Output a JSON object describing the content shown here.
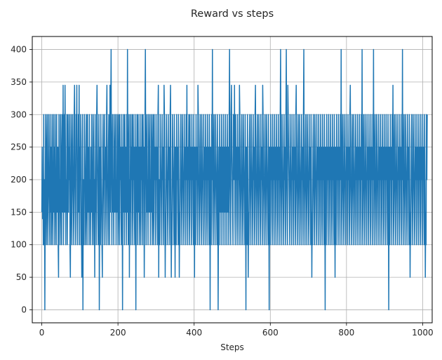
{
  "chart_data": {
    "type": "line",
    "title": "Reward vs steps",
    "xlabel": "Steps",
    "ylabel": "",
    "xlim": [
      -25,
      1025
    ],
    "ylim": [
      -20,
      420
    ],
    "xticks": [
      0,
      200,
      400,
      600,
      800,
      1000
    ],
    "yticks": [
      0,
      50,
      100,
      150,
      200,
      250,
      300,
      350,
      400
    ],
    "grid": true,
    "legend": "none",
    "series": [
      {
        "color": "#1f77b4",
        "x_start": 0,
        "x_step": 1,
        "values": [
          150,
          250,
          140,
          200,
          100,
          300,
          100,
          200,
          0,
          150,
          300,
          200,
          100,
          250,
          300,
          150,
          100,
          200,
          300,
          200,
          150,
          100,
          300,
          150,
          250,
          100,
          200,
          300,
          150,
          100,
          200,
          300,
          150,
          250,
          100,
          300,
          200,
          150,
          100,
          300,
          150,
          200,
          250,
          100,
          50,
          300,
          150,
          200,
          100,
          300,
          250,
          150,
          100,
          300,
          200,
          150,
          345,
          100,
          200,
          300,
          150,
          345,
          250,
          100,
          200,
          150,
          300,
          100,
          200,
          300,
          150,
          250,
          200,
          300,
          100,
          50,
          200,
          300,
          150,
          100,
          250,
          300,
          200,
          150,
          100,
          300,
          345,
          200,
          150,
          100,
          300,
          250,
          345,
          150,
          100,
          200,
          300,
          150,
          345,
          100,
          250,
          200,
          300,
          100,
          150,
          50,
          250,
          300,
          0,
          200,
          150,
          100,
          300,
          250,
          200,
          100,
          150,
          300,
          200,
          100,
          300,
          150,
          250,
          200,
          100,
          300,
          150,
          200,
          100,
          250,
          150,
          300,
          200,
          100,
          150,
          300,
          250,
          100,
          200,
          50,
          300,
          150,
          200,
          100,
          300,
          345,
          250,
          150,
          100,
          200,
          300,
          0,
          150,
          250,
          100,
          300,
          200,
          150,
          100,
          50,
          250,
          300,
          200,
          150,
          100,
          300,
          200,
          250,
          150,
          100,
          300,
          345,
          200,
          150,
          100,
          250,
          300,
          200,
          100,
          345,
          150,
          300,
          400,
          200,
          100,
          250,
          300,
          150,
          200,
          100,
          300,
          250,
          150,
          200,
          300,
          100,
          200,
          150,
          300,
          250,
          100,
          200,
          300,
          150,
          100,
          300,
          200,
          250,
          150,
          100,
          300,
          200,
          0,
          250,
          150,
          300,
          200,
          100,
          300,
          150,
          250,
          200,
          100,
          300,
          150,
          400,
          200,
          100,
          250,
          300,
          50,
          200,
          150,
          300,
          100,
          250,
          200,
          300,
          150,
          100,
          300,
          200,
          250,
          150,
          100,
          300,
          200,
          0,
          250,
          150,
          300,
          100,
          200,
          300,
          150,
          250,
          100,
          200,
          300,
          150,
          100,
          250,
          200,
          300,
          150,
          100,
          300,
          200,
          250,
          50,
          150,
          300,
          400,
          200,
          100,
          250,
          300,
          150,
          200,
          100,
          300,
          250,
          150,
          200,
          300,
          100,
          200,
          150,
          300,
          250,
          100,
          200,
          300,
          150,
          100,
          300,
          200,
          250,
          150,
          100,
          300,
          200,
          250,
          150,
          100,
          300,
          345,
          50,
          200,
          150,
          100,
          300,
          250,
          200,
          150,
          100,
          300,
          200,
          250,
          150,
          100,
          345,
          300,
          200,
          50,
          150,
          100,
          300,
          250,
          200,
          150,
          100,
          300,
          200,
          250,
          150,
          100,
          300,
          345,
          200,
          50,
          150,
          100,
          300,
          250,
          200,
          150,
          100,
          300,
          200,
          50,
          250,
          150,
          100,
          300,
          200,
          250,
          150,
          100,
          300,
          200,
          50,
          150,
          100,
          250,
          300,
          200,
          150,
          100,
          300,
          250,
          200,
          150,
          100,
          300,
          200,
          250,
          150,
          100,
          300,
          200,
          345,
          150,
          100,
          250,
          200,
          300,
          150,
          100,
          300,
          200,
          250,
          150,
          100,
          300,
          200,
          250,
          150,
          100,
          300,
          200,
          50,
          250,
          150,
          100,
          300,
          200,
          250,
          150,
          100,
          345,
          300,
          200,
          150,
          100,
          250,
          300,
          200,
          150,
          100,
          300,
          250,
          200,
          150,
          100,
          300,
          200,
          250,
          150,
          100,
          300,
          200,
          250,
          150,
          100,
          300,
          200,
          250,
          150,
          100,
          300,
          200,
          0,
          250,
          150,
          100,
          300,
          200,
          400,
          150,
          100,
          250,
          300,
          200,
          150,
          100,
          300,
          250,
          200,
          150,
          100,
          300,
          200,
          0,
          150,
          250,
          100,
          300,
          200,
          150,
          250,
          100,
          300,
          200,
          150,
          250,
          100,
          300,
          200,
          150,
          250,
          100,
          300,
          200,
          150,
          250,
          100,
          300,
          200,
          150,
          250,
          100,
          300,
          400,
          200,
          150,
          100,
          300,
          345,
          250,
          200,
          150,
          100,
          300,
          250,
          200,
          345,
          150,
          100,
          300,
          200,
          250,
          150,
          100,
          300,
          200,
          250,
          150,
          100,
          345,
          300,
          200,
          150,
          100,
          250,
          300,
          200,
          150,
          100,
          300,
          250,
          200,
          150,
          100,
          300,
          200,
          0,
          250,
          150,
          100,
          300,
          200,
          50,
          150,
          100,
          250,
          300,
          200,
          150,
          100,
          300,
          250,
          200,
          150,
          100,
          300,
          200,
          250,
          150,
          100,
          300,
          345,
          200,
          150,
          100,
          250,
          300,
          200,
          150,
          100,
          300,
          250,
          200,
          150,
          100,
          300,
          200,
          250,
          150,
          100,
          345,
          300,
          200,
          150,
          100,
          250,
          300,
          200,
          150,
          100,
          300,
          250,
          200,
          150,
          100,
          300,
          200,
          0,
          250,
          150,
          100,
          300,
          200,
          250,
          150,
          100,
          300,
          200,
          250,
          150,
          100,
          300,
          200,
          250,
          150,
          100,
          300,
          200,
          250,
          150,
          100,
          300,
          200,
          250,
          150,
          100,
          300,
          400,
          200,
          150,
          100,
          300,
          250,
          200,
          150,
          100,
          300,
          200,
          250,
          150,
          100,
          300,
          400,
          200,
          150,
          100,
          345,
          300,
          250,
          200,
          150,
          100,
          300,
          250,
          200,
          150,
          100,
          300,
          200,
          250,
          150,
          100,
          300,
          200,
          250,
          150,
          100,
          300,
          345,
          200,
          150,
          100,
          250,
          300,
          200,
          150,
          100,
          300,
          250,
          200,
          150,
          100,
          300,
          200,
          250,
          150,
          100,
          300,
          400,
          200,
          150,
          100,
          250,
          300,
          200,
          150,
          100,
          300,
          250,
          200,
          150,
          100,
          300,
          200,
          250,
          150,
          100,
          300,
          200,
          50,
          150,
          100,
          250,
          300,
          200,
          150,
          100,
          300,
          250,
          200,
          150,
          100,
          300,
          200,
          250,
          150,
          100,
          300,
          200,
          250,
          150,
          100,
          300,
          200,
          250,
          150,
          100,
          300,
          200,
          250,
          150,
          100,
          300,
          200,
          0,
          250,
          150,
          100,
          300,
          200,
          250,
          150,
          100,
          300,
          200,
          250,
          150,
          100,
          300,
          200,
          250,
          150,
          100,
          300,
          200,
          250,
          150,
          100,
          300,
          200,
          50,
          250,
          150,
          100,
          300,
          200,
          250,
          150,
          100,
          300,
          200,
          250,
          150,
          100,
          300,
          200,
          400,
          150,
          100,
          250,
          300,
          200,
          150,
          100,
          300,
          250,
          200,
          150,
          100,
          300,
          200,
          250,
          150,
          100,
          300,
          200,
          250,
          150,
          100,
          300,
          345,
          200,
          150,
          100,
          250,
          300,
          200,
          150,
          100,
          300,
          250,
          200,
          150,
          100,
          300,
          200,
          250,
          150,
          100,
          300,
          200,
          250,
          150,
          100,
          300,
          200,
          250,
          150,
          100,
          300,
          200,
          400,
          150,
          100,
          250,
          300,
          200,
          150,
          100,
          300,
          250,
          200,
          150,
          100,
          300,
          200,
          250,
          150,
          100,
          300,
          200,
          250,
          150,
          100,
          300,
          200,
          250,
          150,
          100,
          300,
          200,
          400,
          150,
          100,
          250,
          300,
          200,
          150,
          100,
          300,
          250,
          200,
          150,
          100,
          300,
          200,
          250,
          150,
          100,
          300,
          200,
          250,
          150,
          100,
          300,
          200,
          250,
          150,
          100,
          300,
          200,
          250,
          150,
          100,
          300,
          200,
          250,
          150,
          100,
          300,
          200,
          0,
          250,
          150,
          100,
          300,
          200,
          250,
          150,
          100,
          300,
          200,
          345,
          150,
          100,
          250,
          300,
          200,
          150,
          100,
          300,
          250,
          200,
          150,
          100,
          300,
          200,
          250,
          150,
          100,
          300,
          200,
          250,
          150,
          100,
          300,
          200,
          400,
          150,
          100,
          250,
          300,
          200,
          150,
          100,
          300,
          250,
          200,
          150,
          100,
          300,
          200,
          250,
          150,
          100,
          300,
          200,
          50,
          150,
          100,
          250,
          300,
          200,
          150,
          100,
          300,
          250,
          200,
          150,
          100,
          300,
          200,
          250,
          150,
          100,
          300,
          200,
          250,
          150,
          100,
          300,
          200,
          250,
          150,
          100,
          300,
          200,
          250,
          150,
          100,
          300,
          200,
          250,
          150,
          100,
          300,
          200,
          50,
          150,
          100,
          300,
          200,
          300
        ]
      }
    ]
  }
}
